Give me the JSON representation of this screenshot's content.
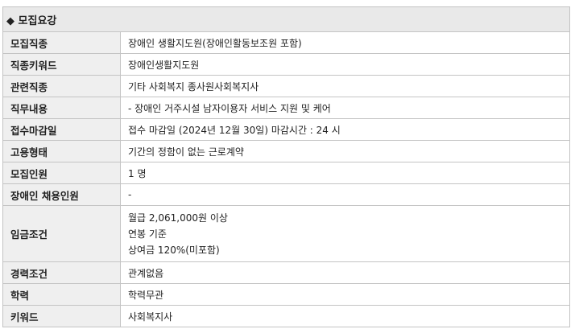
{
  "section": {
    "icon": "diamond-icon",
    "title": "◆ 모집요강"
  },
  "rows": [
    {
      "label": "모집직종",
      "value": "장애인 생활지도원(장애인활동보조원 포함)"
    },
    {
      "label": "직종키워드",
      "value": "장애인생활지도원"
    },
    {
      "label": "관련직종",
      "value": "기타 사회복지 종사원사회복지사"
    },
    {
      "label": "직무내용",
      "value": "- 장애인 거주시설 남자이용자 서비스 지원 및 케어"
    },
    {
      "label": "접수마감일",
      "value": "접수 마감일 (2024년 12월 30일) 마감시간 : 24 시"
    },
    {
      "label": "고용형태",
      "value": "기간의 정함이 없는 근로계약"
    },
    {
      "label": "모집인원",
      "value": "1 명"
    },
    {
      "label": "장애인 채용인원",
      "value": "-"
    },
    {
      "label": "임금조건",
      "lines": [
        "월급 2,061,000원 이상",
        "연봉 기준",
        "상여금 120%(미포함)"
      ]
    },
    {
      "label": "경력조건",
      "value": "관계없음"
    },
    {
      "label": "학력",
      "value": "학력무관"
    },
    {
      "label": "키워드",
      "value": "사회복지사"
    }
  ]
}
